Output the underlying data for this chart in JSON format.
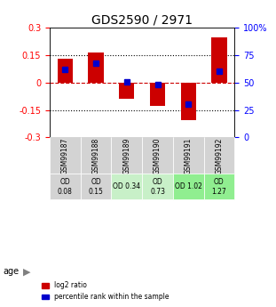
{
  "title": "GDS2590 / 2971",
  "samples": [
    "GSM99187",
    "GSM99188",
    "GSM99189",
    "GSM99190",
    "GSM99191",
    "GSM99192"
  ],
  "log2_ratios": [
    0.13,
    0.165,
    -0.09,
    -0.13,
    -0.205,
    0.245
  ],
  "percentile_ranks": [
    0.62,
    0.68,
    0.505,
    0.485,
    0.3,
    0.6
  ],
  "ylim": [
    -0.3,
    0.3
  ],
  "yticks_left": [
    -0.3,
    -0.15,
    0,
    0.15,
    0.3
  ],
  "yticks_right": [
    0,
    25,
    50,
    75,
    100
  ],
  "bar_color": "#cc0000",
  "dot_color": "#0000cc",
  "age_labels": [
    "OD\n0.08",
    "OD\n0.15",
    "OD 0.34",
    "OD\n0.73",
    "OD 1.02",
    "OD\n1.27"
  ],
  "age_bg_colors": [
    "#d3d3d3",
    "#d3d3d3",
    "#c8f0c8",
    "#c8f0c8",
    "#90ee90",
    "#90ee90"
  ],
  "sample_bg_color": "#d3d3d3",
  "grid_color": "#000000",
  "zero_line_color": "#cc0000",
  "dotted_line_color": "#000000"
}
